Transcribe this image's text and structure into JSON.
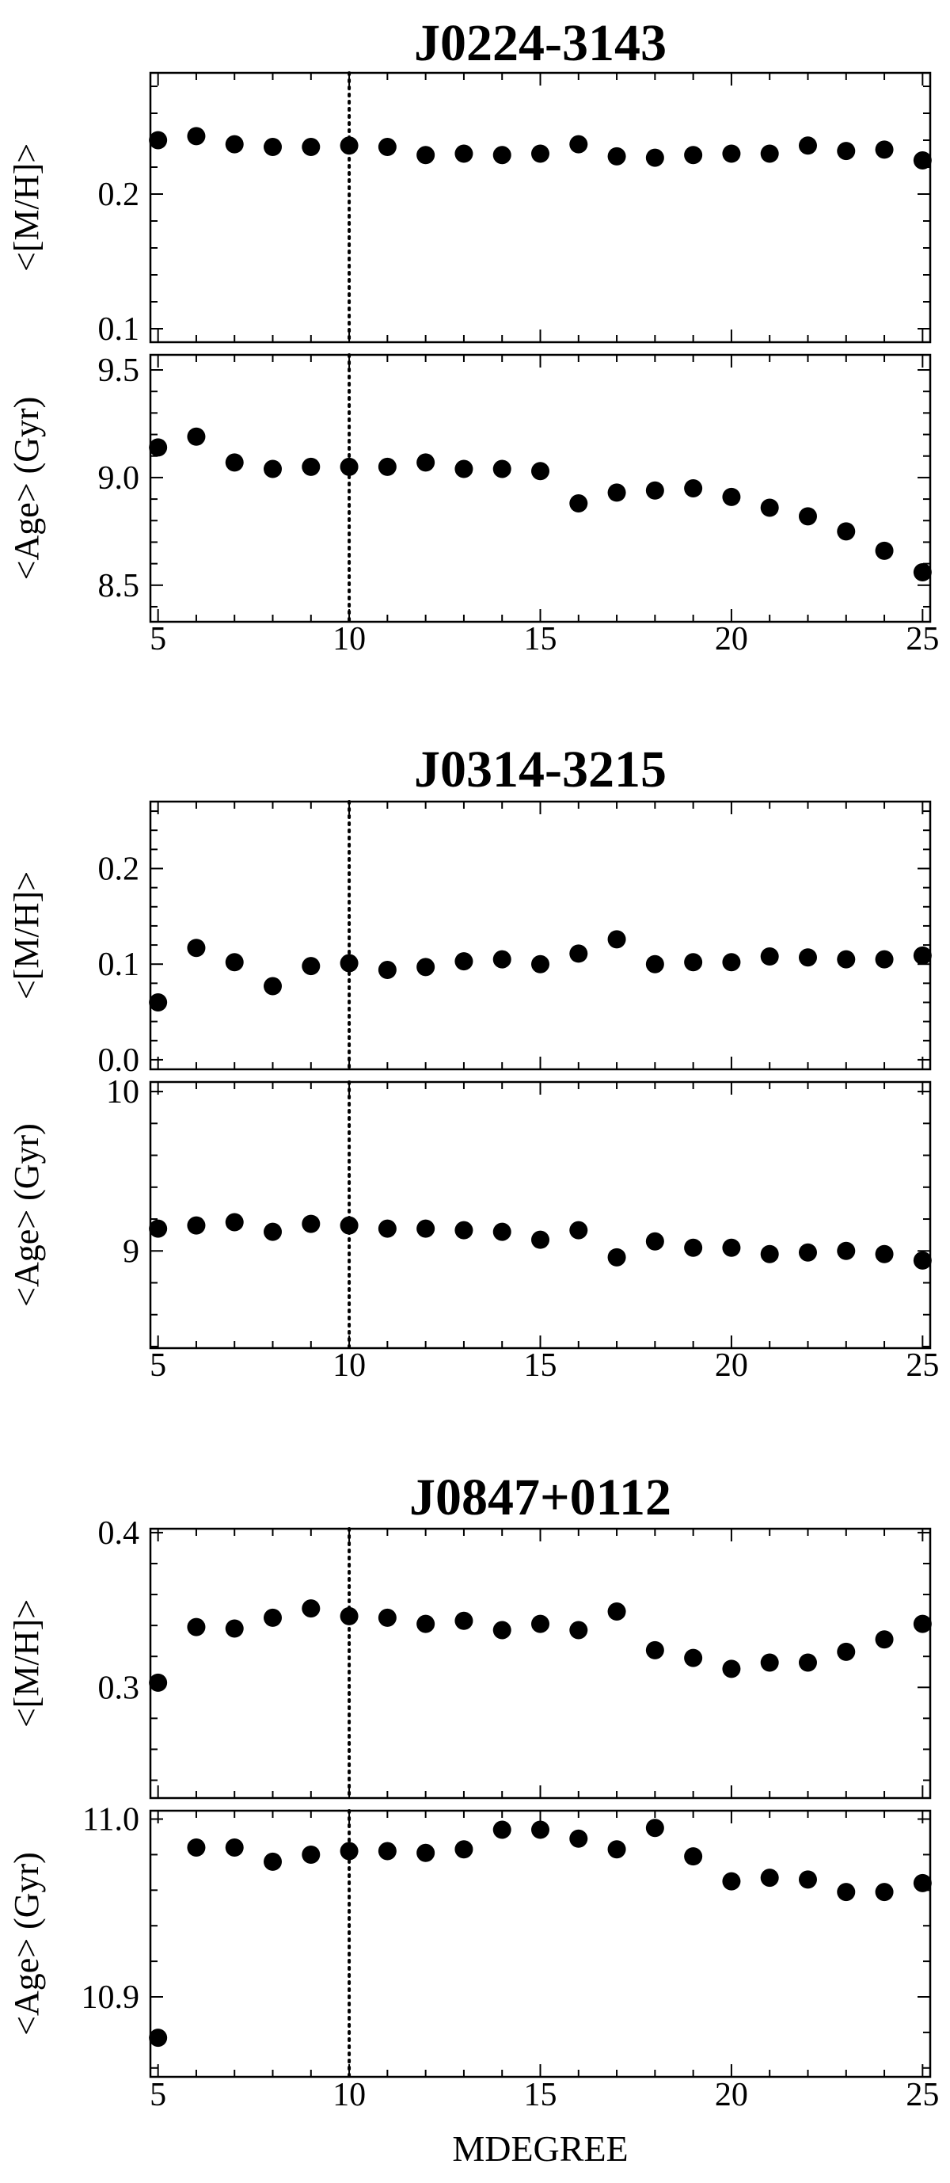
{
  "chart_data": [
    {
      "type": "scatter",
      "title": "J0224-3143",
      "xlabel": "",
      "ylabel": "<[M/H]>",
      "x": [
        5,
        6,
        7,
        8,
        9,
        10,
        11,
        12,
        13,
        14,
        15,
        16,
        17,
        18,
        19,
        20,
        21,
        22,
        23,
        24,
        25
      ],
      "y": [
        0.24,
        0.243,
        0.237,
        0.235,
        0.235,
        0.236,
        0.235,
        0.229,
        0.23,
        0.229,
        0.23,
        0.237,
        0.228,
        0.227,
        0.229,
        0.23,
        0.23,
        0.236,
        0.232,
        0.233,
        0.225
      ],
      "xlim": [
        4.8,
        25.2
      ],
      "ylim": [
        0.09,
        0.29
      ],
      "yticks": [
        "0.1",
        "0.2"
      ],
      "xticks": [],
      "reference_line_x": 10,
      "grid": false
    },
    {
      "type": "scatter",
      "title": "",
      "xlabel": "",
      "ylabel": "<Age> (Gyr)",
      "x": [
        5,
        6,
        7,
        8,
        9,
        10,
        11,
        12,
        13,
        14,
        15,
        16,
        17,
        18,
        19,
        20,
        21,
        22,
        23,
        24,
        25
      ],
      "y": [
        9.14,
        9.19,
        9.07,
        9.04,
        9.05,
        9.05,
        9.05,
        9.07,
        9.04,
        9.04,
        9.03,
        8.88,
        8.93,
        8.94,
        8.95,
        8.91,
        8.86,
        8.82,
        8.75,
        8.66,
        8.56
      ],
      "xlim": [
        4.8,
        25.2
      ],
      "ylim": [
        8.33,
        9.57
      ],
      "yticks": [
        "8.5",
        "9.0",
        "9.5"
      ],
      "xticks": [
        "5",
        "10",
        "15",
        "20",
        "25"
      ],
      "reference_line_x": 10,
      "grid": false
    },
    {
      "type": "scatter",
      "title": "J0314-3215",
      "xlabel": "",
      "ylabel": "<[M/H]>",
      "x": [
        5,
        6,
        7,
        8,
        9,
        10,
        11,
        12,
        13,
        14,
        15,
        16,
        17,
        18,
        19,
        20,
        21,
        22,
        23,
        24,
        25
      ],
      "y": [
        0.06,
        0.117,
        0.102,
        0.077,
        0.098,
        0.101,
        0.094,
        0.097,
        0.103,
        0.105,
        0.1,
        0.111,
        0.126,
        0.1,
        0.102,
        0.102,
        0.108,
        0.107,
        0.105,
        0.105,
        0.109
      ],
      "xlim": [
        4.8,
        25.2
      ],
      "ylim": [
        -0.01,
        0.27
      ],
      "yticks": [
        "0.0",
        "0.1",
        "0.2"
      ],
      "xticks": [],
      "reference_line_x": 10,
      "grid": false
    },
    {
      "type": "scatter",
      "title": "",
      "xlabel": "",
      "ylabel": "<Age> (Gyr)",
      "x": [
        5,
        6,
        7,
        8,
        9,
        10,
        11,
        12,
        13,
        14,
        15,
        16,
        17,
        18,
        19,
        20,
        21,
        22,
        23,
        24,
        25
      ],
      "y": [
        9.14,
        9.16,
        9.18,
        9.12,
        9.17,
        9.16,
        9.14,
        9.14,
        9.13,
        9.12,
        9.07,
        9.13,
        8.96,
        9.06,
        9.02,
        9.02,
        8.98,
        8.99,
        9.0,
        8.98,
        8.94
      ],
      "xlim": [
        4.8,
        25.2
      ],
      "ylim": [
        8.39,
        10.06
      ],
      "yticks": [
        "9",
        "10"
      ],
      "xticks": [
        "5",
        "10",
        "15",
        "20",
        "25"
      ],
      "reference_line_x": 10,
      "grid": false
    },
    {
      "type": "scatter",
      "title": "J0847+0112",
      "xlabel": "",
      "ylabel": "<[M/H]>",
      "x": [
        5,
        6,
        7,
        8,
        9,
        10,
        11,
        12,
        13,
        14,
        15,
        16,
        17,
        18,
        19,
        20,
        21,
        22,
        23,
        24,
        25
      ],
      "y": [
        0.303,
        0.339,
        0.338,
        0.345,
        0.351,
        0.346,
        0.345,
        0.341,
        0.343,
        0.337,
        0.341,
        0.337,
        0.349,
        0.324,
        0.319,
        0.312,
        0.316,
        0.316,
        0.323,
        0.331,
        0.341
      ],
      "xlim": [
        4.8,
        25.2
      ],
      "ylim": [
        0.2285,
        0.4025
      ],
      "yticks": [
        "0.3",
        "0.4"
      ],
      "xticks": [],
      "reference_line_x": 10,
      "grid": false
    },
    {
      "type": "scatter",
      "title": "",
      "xlabel": "MDEGREE",
      "ylabel": "<Age> (Gyr)",
      "x": [
        5,
        6,
        7,
        8,
        9,
        10,
        11,
        12,
        13,
        14,
        15,
        16,
        17,
        18,
        19,
        20,
        21,
        22,
        23,
        24,
        25
      ],
      "y": [
        10.877,
        10.984,
        10.984,
        10.976,
        10.98,
        10.982,
        10.982,
        10.981,
        10.983,
        10.994,
        10.994,
        10.989,
        10.983,
        10.995,
        10.979,
        10.965,
        10.967,
        10.966,
        10.959,
        10.959,
        10.964
      ],
      "xlim": [
        4.8,
        25.2
      ],
      "ylim": [
        10.855,
        11.0047
      ],
      "yticks": [
        "10.9",
        "11.0"
      ],
      "xticks": [
        "5",
        "10",
        "15",
        "20",
        "25"
      ],
      "reference_line_x": 10,
      "grid": false
    }
  ]
}
